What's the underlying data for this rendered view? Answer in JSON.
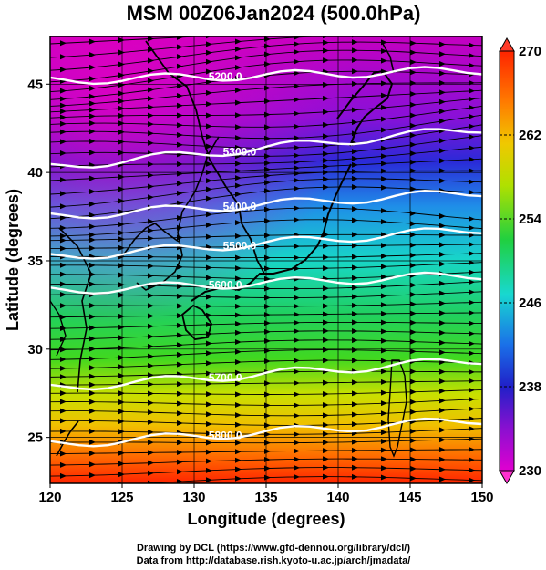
{
  "title": "MSM 00Z06Jan2024 (500.0hPa)",
  "x_axis": {
    "label": "Longitude (degrees)",
    "ticks": [
      "120",
      "125",
      "130",
      "135",
      "140",
      "145",
      "150"
    ]
  },
  "y_axis": {
    "label": "Latitude  (degrees)",
    "ticks": [
      "25",
      "30",
      "35",
      "40",
      "45"
    ]
  },
  "colorbar": {
    "ticks": [
      "270",
      "262",
      "254",
      "246",
      "238",
      "230"
    ]
  },
  "contours": [
    {
      "value": 5200,
      "label": "5200.0"
    },
    {
      "value": 5300,
      "label": "5300.0"
    },
    {
      "value": 5400,
      "label": "5400.0"
    },
    {
      "value": 5500,
      "label": "5500.0"
    },
    {
      "value": 5600,
      "label": "5600.0"
    },
    {
      "value": 5700,
      "label": "5700.0"
    },
    {
      "value": 5800,
      "label": "5800.0"
    }
  ],
  "credits": {
    "line1": "Drawing by DCL (https://www.gfd-dennou.org/library/dcl/)",
    "line2": "Data from http://database.rish.kyoto-u.ac.jp/arch/jmadata/"
  },
  "map": {
    "lon_range": [
      120,
      150
    ],
    "lat_range": [
      22.4,
      47.7
    ],
    "temperature_range_K": [
      230,
      270
    ],
    "colors": {
      "cold": "#d900d0",
      "blue": "#1a2ad0",
      "cyan": "#14d8d8",
      "green": "#22d022",
      "yellow": "#e8e800",
      "warm": "#ff2a00",
      "contour": "#ffffff",
      "coast": "#000000"
    }
  }
}
